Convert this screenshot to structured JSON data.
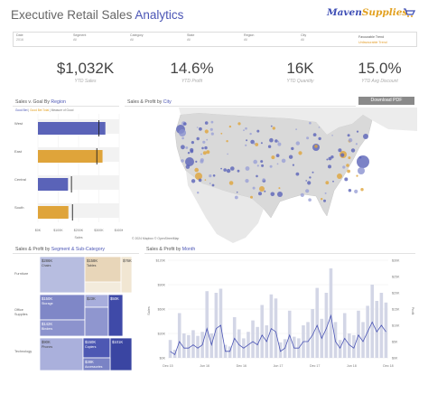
{
  "header": {
    "title_main": "Executive Retail Sales ",
    "title_accent": "Analytics",
    "logo_main": "Maven",
    "logo_accent": "Supplies"
  },
  "filters": [
    {
      "label": "Date",
      "value": "2016"
    },
    {
      "label": "Segment",
      "value": "All"
    },
    {
      "label": "Category",
      "value": "All"
    },
    {
      "label": "State",
      "value": "All"
    },
    {
      "label": "Region",
      "value": "All"
    },
    {
      "label": "City",
      "value": "All"
    }
  ],
  "trend_legend": {
    "favourable": "Favourable Trend",
    "unfavourable": "Unfavourable Trend"
  },
  "kpis": [
    {
      "value": "$1,032K",
      "label": "YTD Sales"
    },
    {
      "value": "14.6%",
      "label": "YTD Profit"
    },
    {
      "value": "16K",
      "label": "YTD Quantity"
    },
    {
      "value": "15.0%",
      "label": "YTD Avg Discount"
    }
  ],
  "panels": {
    "sales_goal": {
      "title": "Sales v. Goal By ",
      "accent": "Region",
      "legend": [
        "Good Bet",
        "Good Bet Total",
        "Measure of Good"
      ]
    },
    "map": {
      "title": "Sales & Profit by ",
      "accent": "City",
      "credit": "© 2024 Mapbox © OpenStreetMap",
      "download": "Download PDF"
    },
    "treemap": {
      "title": "Sales & Profit by ",
      "accent": "Segment & Sub-Category"
    },
    "month": {
      "title": "Sales & Profit by ",
      "accent": "Month"
    }
  },
  "colors": {
    "accent": "#4b55b5",
    "gold": "#e2a01f",
    "bar_blue": "#5a63b8",
    "bar_gold": "#dfa43a"
  },
  "chart_data": [
    {
      "type": "bar",
      "categories": [
        "West",
        "East",
        "Central",
        "South"
      ],
      "values": [
        332,
        318,
        148,
        150
      ],
      "goals": [
        300,
        290,
        165,
        170
      ],
      "axis_ticks": [
        "$0K",
        "$100K",
        "$200K",
        "$300K",
        "$400K"
      ],
      "xlabel": "Sales",
      "xlim": [
        0,
        400
      ]
    },
    {
      "type": "treemap",
      "segments": [
        "Furniture",
        "Office Supplies",
        "Technology"
      ],
      "labels": [
        {
          "value": "$286K",
          "name": "Chairs"
        },
        {
          "value": "$158K",
          "name": "Tables"
        },
        {
          "value": "$76K",
          "name": ""
        },
        {
          "value": "$23K",
          "name": ""
        },
        {
          "value": "$150K",
          "name": "Storage"
        },
        {
          "value": "$142K",
          "name": "Binders"
        },
        {
          "value": "$50K",
          "name": ""
        },
        {
          "value": "$90K",
          "name": "Phones"
        },
        {
          "value": "$150K",
          "name": "Copiers"
        },
        {
          "value": "$101K",
          "name": ""
        },
        {
          "value": "$38K",
          "name": "Accessories"
        }
      ]
    },
    {
      "type": "bar+line",
      "x_ticks": [
        "Dec 15",
        "Jun 16",
        "Dec 16",
        "Jun 17",
        "Dec 17",
        "Jun 18",
        "Dec 18"
      ],
      "y_left_ticks": [
        "$0K",
        "$30K",
        "$60K",
        "$90K",
        "$120K"
      ],
      "y_right_ticks": [
        "$0K",
        "$5K",
        "$10K",
        "$15K",
        "$20K",
        "$25K",
        "$30K"
      ],
      "ylabel_left": "Sales",
      "ylabel_right": "Profit",
      "sales": [
        22,
        10,
        55,
        30,
        28,
        34,
        27,
        32,
        82,
        30,
        80,
        85,
        16,
        14,
        50,
        35,
        24,
        32,
        46,
        38,
        65,
        40,
        78,
        73,
        19,
        23,
        58,
        26,
        24,
        40,
        44,
        60,
        86,
        48,
        80,
        110,
        44,
        22,
        55,
        30,
        28,
        58,
        44,
        64,
        90,
        70,
        80,
        68
      ],
      "profit": [
        2,
        1,
        5,
        3,
        3,
        4,
        3,
        4,
        9,
        4,
        9,
        10,
        2,
        2,
        6,
        4,
        3,
        4,
        5,
        4,
        7,
        5,
        9,
        8,
        2,
        3,
        7,
        3,
        3,
        5,
        5,
        7,
        10,
        6,
        9,
        13,
        5,
        3,
        6,
        4,
        3,
        7,
        5,
        8,
        11,
        8,
        10,
        8
      ]
    }
  ]
}
